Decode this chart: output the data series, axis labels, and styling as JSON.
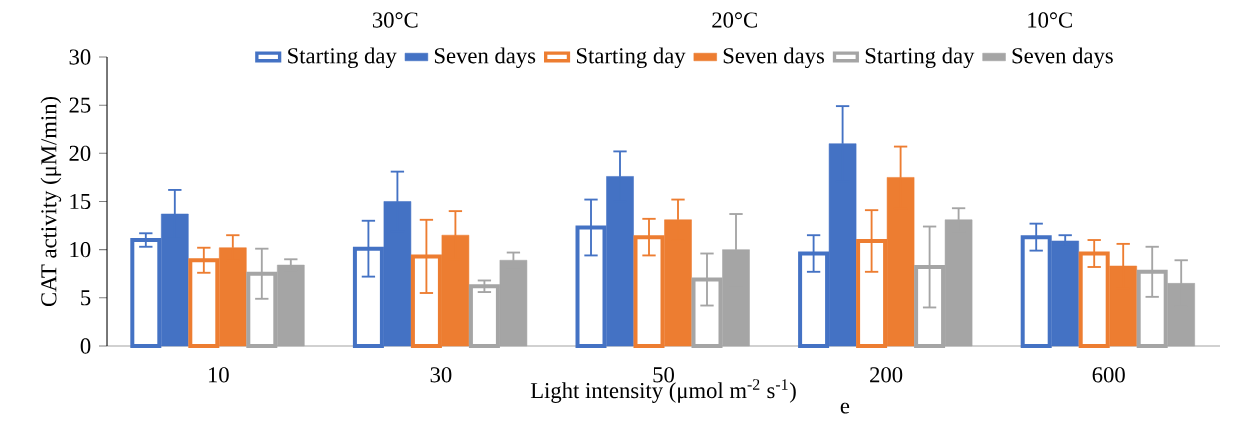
{
  "chart_data": {
    "type": "bar",
    "categories": [
      "10",
      "30",
      "50",
      "200",
      "600"
    ],
    "xlabel": "Light intensity (μmol m$^{-2}$ s$^{-1}$)",
    "ylabel": "CAT activity (μM/min)",
    "ylim": [
      0,
      30
    ],
    "yticks": [
      0,
      5,
      10,
      15,
      20,
      25,
      30
    ],
    "legend": "top",
    "annotations": [
      "30°C",
      "20°C",
      "10°C",
      "e"
    ],
    "series": [
      {
        "name": "Starting day",
        "color": "#4472c4",
        "values": [
          11.0,
          10.1,
          12.3,
          9.6,
          11.3
        ],
        "errors": [
          0.7,
          2.9,
          2.9,
          1.9,
          1.4
        ]
      },
      {
        "name": "Seven days",
        "color": "#4472c4",
        "values": [
          13.7,
          15.0,
          17.6,
          21.0,
          10.9
        ],
        "errors": [
          2.5,
          3.1,
          2.6,
          3.9,
          0.6
        ]
      },
      {
        "name": "Starting day",
        "color": "#ed7d31",
        "values": [
          8.9,
          9.3,
          11.3,
          10.9,
          9.6
        ],
        "errors": [
          1.3,
          3.8,
          1.9,
          3.2,
          1.4
        ]
      },
      {
        "name": "Seven days",
        "color": "#ed7d31",
        "values": [
          10.2,
          11.5,
          13.1,
          17.5,
          8.3
        ],
        "errors": [
          1.3,
          2.5,
          2.1,
          3.2,
          2.3
        ]
      },
      {
        "name": "Starting day",
        "color": "#a5a5a5",
        "values": [
          7.5,
          6.2,
          6.9,
          8.2,
          7.7
        ],
        "errors": [
          2.6,
          0.6,
          2.7,
          4.2,
          2.6
        ]
      },
      {
        "name": "Seven days",
        "color": "#a5a5a5",
        "values": [
          8.4,
          8.9,
          10.0,
          13.1,
          6.5
        ],
        "errors": [
          0.6,
          0.8,
          3.7,
          1.2,
          2.4
        ]
      }
    ]
  }
}
